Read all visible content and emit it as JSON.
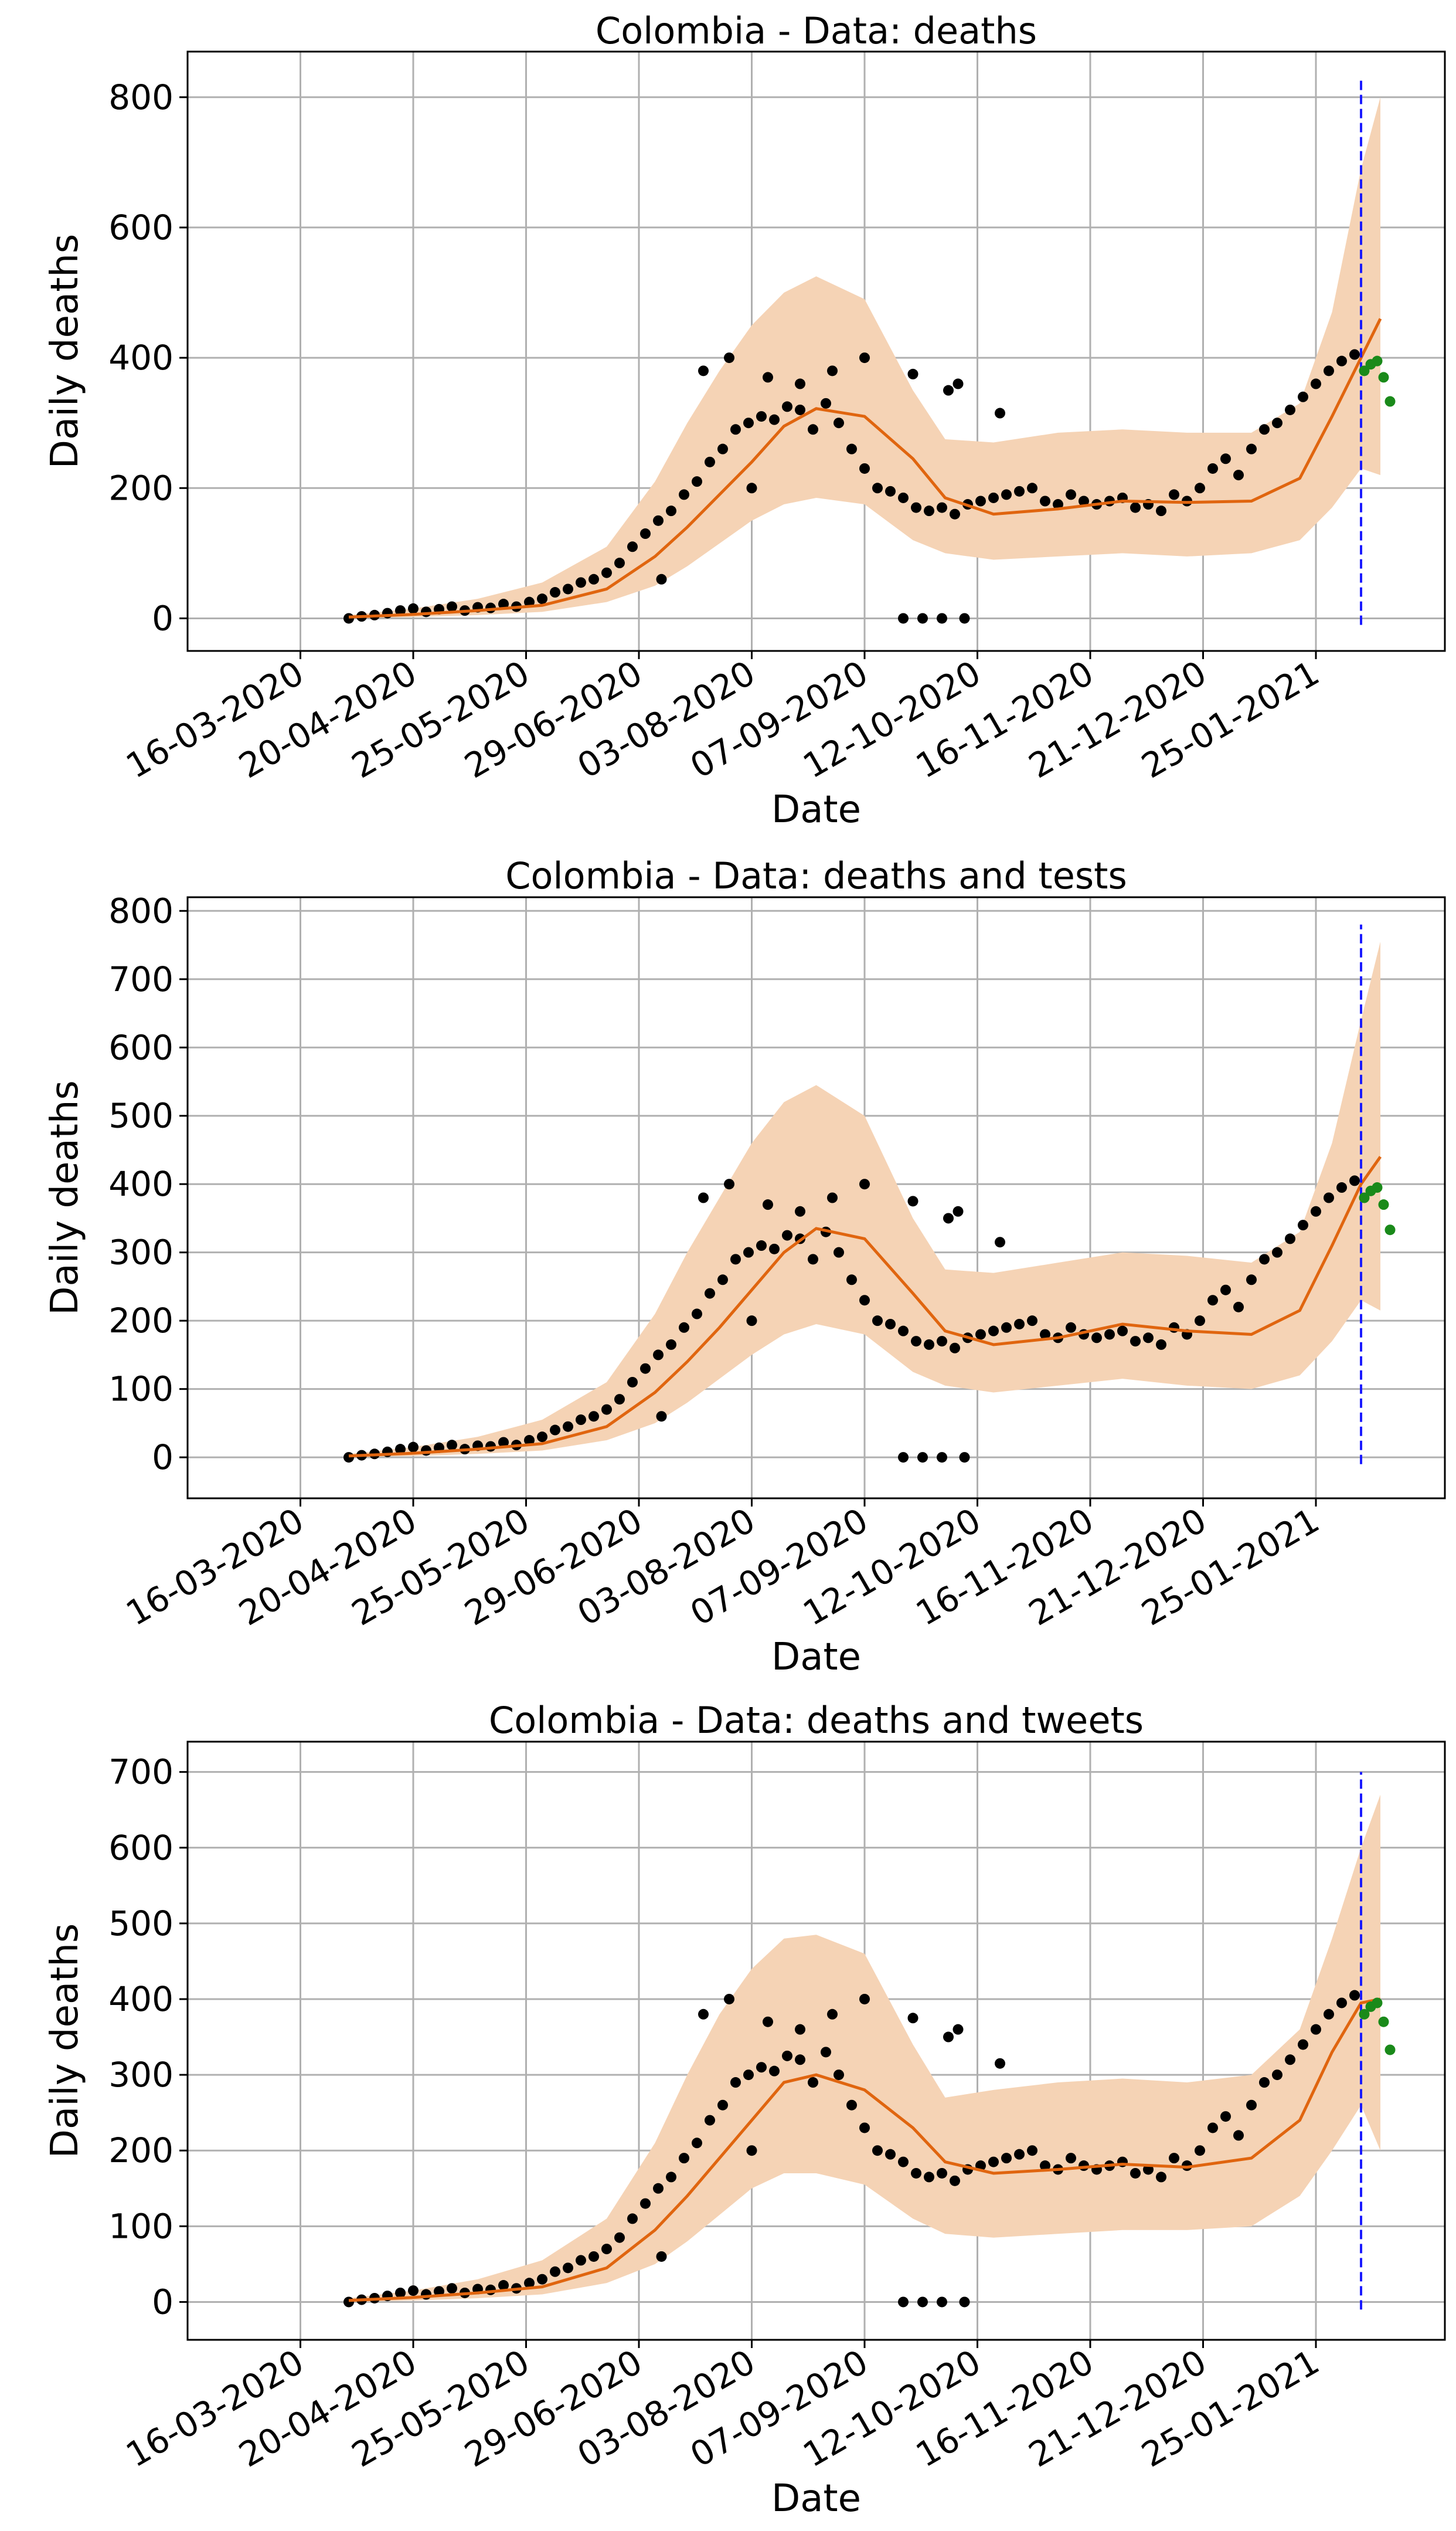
{
  "figure": {
    "x_axis_label": "Date",
    "y_axis_label": "Daily deaths",
    "date_ticks": [
      "16-03-2020",
      "20-04-2020",
      "25-05-2020",
      "29-06-2020",
      "03-08-2020",
      "07-09-2020",
      "12-10-2020",
      "16-11-2020",
      "21-12-2020",
      "25-01-2021"
    ],
    "colors": {
      "band": "#f5d3b5",
      "fit_line": "#e0650f",
      "observed": "#000000",
      "future": "#1a8a1a",
      "today_line": "#1a1aff",
      "grid": "#b0b0b0"
    }
  },
  "chart_data": [
    {
      "type": "scatter",
      "title": "Colombia - Data: deaths",
      "xlabel": "Date",
      "ylabel": "Daily deaths",
      "ylim": [
        -50,
        870
      ],
      "yticks": [
        0,
        200,
        400,
        600,
        800
      ],
      "today_vline": {
        "x_day": 314,
        "y_range": [
          -10,
          830
        ]
      },
      "fit_day": [
        0,
        20,
        40,
        60,
        80,
        95,
        105,
        115,
        125,
        135,
        145,
        160,
        175,
        185,
        200,
        220,
        240,
        260,
        280,
        295,
        305,
        314,
        320
      ],
      "fit_value": [
        2,
        6,
        12,
        20,
        45,
        95,
        140,
        190,
        240,
        295,
        322,
        310,
        245,
        185,
        160,
        168,
        180,
        178,
        180,
        215,
        310,
        400,
        460
      ],
      "band_upper": [
        5,
        15,
        30,
        55,
        110,
        210,
        300,
        380,
        450,
        500,
        525,
        490,
        350,
        275,
        270,
        285,
        290,
        285,
        285,
        330,
        470,
        690,
        800
      ],
      "band_lower": [
        0,
        2,
        5,
        10,
        25,
        50,
        80,
        115,
        150,
        175,
        185,
        175,
        120,
        100,
        90,
        95,
        100,
        95,
        100,
        120,
        170,
        230,
        220
      ],
      "observed_day": [
        0,
        4,
        8,
        12,
        16,
        20,
        24,
        28,
        32,
        36,
        40,
        44,
        48,
        52,
        56,
        60,
        64,
        68,
        72,
        76,
        80,
        84,
        88,
        92,
        96,
        100,
        104,
        108,
        112,
        116,
        120,
        124,
        128,
        132,
        136,
        140,
        144,
        148,
        152,
        156,
        160,
        164,
        168,
        172,
        176,
        180,
        184,
        188,
        192,
        196,
        200,
        204,
        208,
        212,
        216,
        220,
        224,
        228,
        232,
        236,
        240,
        244,
        248,
        252,
        256,
        260,
        264,
        268,
        272,
        276,
        280,
        284,
        288,
        292,
        296,
        300,
        304,
        308,
        312,
        97,
        172,
        175,
        178,
        184,
        191,
        186,
        189,
        202,
        130,
        140,
        150,
        160,
        110,
        118,
        125
      ],
      "observed_value": [
        0,
        3,
        5,
        8,
        12,
        15,
        10,
        14,
        18,
        12,
        17,
        16,
        22,
        18,
        25,
        30,
        40,
        45,
        55,
        60,
        70,
        85,
        110,
        130,
        150,
        165,
        190,
        210,
        240,
        260,
        290,
        300,
        310,
        305,
        325,
        320,
        290,
        330,
        300,
        260,
        230,
        200,
        195,
        185,
        170,
        165,
        170,
        160,
        175,
        180,
        185,
        190,
        195,
        200,
        180,
        175,
        190,
        180,
        175,
        180,
        185,
        170,
        175,
        165,
        190,
        180,
        200,
        230,
        245,
        220,
        260,
        290,
        300,
        320,
        340,
        360,
        380,
        395,
        405,
        60,
        0,
        375,
        0,
        0,
        0,
        350,
        360,
        315,
        370,
        360,
        380,
        400,
        380,
        400,
        200
      ],
      "future_day": [
        315,
        317,
        319,
        321,
        323
      ],
      "future_value": [
        380,
        390,
        395,
        370,
        333
      ]
    },
    {
      "type": "scatter",
      "title": "Colombia - Data: deaths and tests",
      "xlabel": "Date",
      "ylabel": "Daily deaths",
      "ylim": [
        -60,
        820
      ],
      "yticks": [
        0,
        100,
        200,
        300,
        400,
        500,
        600,
        700,
        800
      ],
      "today_vline": {
        "x_day": 314,
        "y_range": [
          -10,
          780
        ]
      },
      "fit_day": [
        0,
        20,
        40,
        60,
        80,
        95,
        105,
        115,
        125,
        135,
        145,
        160,
        175,
        185,
        200,
        220,
        240,
        260,
        280,
        295,
        305,
        314,
        320
      ],
      "fit_value": [
        2,
        6,
        12,
        20,
        45,
        95,
        140,
        190,
        245,
        300,
        335,
        320,
        240,
        185,
        165,
        175,
        195,
        185,
        180,
        215,
        310,
        400,
        440
      ],
      "band_upper": [
        5,
        15,
        30,
        55,
        110,
        210,
        300,
        380,
        460,
        520,
        545,
        500,
        350,
        275,
        270,
        285,
        300,
        295,
        285,
        330,
        460,
        640,
        755
      ],
      "band_lower": [
        0,
        2,
        5,
        10,
        25,
        50,
        80,
        115,
        150,
        180,
        195,
        180,
        125,
        105,
        95,
        105,
        115,
        105,
        100,
        120,
        170,
        230,
        215
      ],
      "observed_day": [
        0,
        4,
        8,
        12,
        16,
        20,
        24,
        28,
        32,
        36,
        40,
        44,
        48,
        52,
        56,
        60,
        64,
        68,
        72,
        76,
        80,
        84,
        88,
        92,
        96,
        100,
        104,
        108,
        112,
        116,
        120,
        124,
        128,
        132,
        136,
        140,
        144,
        148,
        152,
        156,
        160,
        164,
        168,
        172,
        176,
        180,
        184,
        188,
        192,
        196,
        200,
        204,
        208,
        212,
        216,
        220,
        224,
        228,
        232,
        236,
        240,
        244,
        248,
        252,
        256,
        260,
        264,
        268,
        272,
        276,
        280,
        284,
        288,
        292,
        296,
        300,
        304,
        308,
        312,
        97,
        172,
        175,
        178,
        184,
        191,
        186,
        189,
        202,
        130,
        140,
        150,
        160,
        110,
        118,
        125
      ],
      "observed_value": [
        0,
        3,
        5,
        8,
        12,
        15,
        10,
        14,
        18,
        12,
        17,
        16,
        22,
        18,
        25,
        30,
        40,
        45,
        55,
        60,
        70,
        85,
        110,
        130,
        150,
        165,
        190,
        210,
        240,
        260,
        290,
        300,
        310,
        305,
        325,
        320,
        290,
        330,
        300,
        260,
        230,
        200,
        195,
        185,
        170,
        165,
        170,
        160,
        175,
        180,
        185,
        190,
        195,
        200,
        180,
        175,
        190,
        180,
        175,
        180,
        185,
        170,
        175,
        165,
        190,
        180,
        200,
        230,
        245,
        220,
        260,
        290,
        300,
        320,
        340,
        360,
        380,
        395,
        405,
        60,
        0,
        375,
        0,
        0,
        0,
        350,
        360,
        315,
        370,
        360,
        380,
        400,
        380,
        400,
        200
      ],
      "future_day": [
        315,
        317,
        319,
        321,
        323
      ],
      "future_value": [
        380,
        390,
        395,
        370,
        333
      ]
    },
    {
      "type": "scatter",
      "title": "Colombia - Data: deaths and tweets",
      "xlabel": "Date",
      "ylabel": "Daily deaths",
      "ylim": [
        -50,
        740
      ],
      "yticks": [
        0,
        100,
        200,
        300,
        400,
        500,
        600,
        700
      ],
      "today_vline": {
        "x_day": 314,
        "y_range": [
          -10,
          700
        ]
      },
      "fit_day": [
        0,
        20,
        40,
        60,
        80,
        95,
        105,
        115,
        125,
        135,
        145,
        160,
        175,
        185,
        200,
        220,
        240,
        260,
        280,
        295,
        305,
        314,
        320
      ],
      "fit_value": [
        2,
        6,
        12,
        20,
        45,
        95,
        140,
        190,
        240,
        290,
        300,
        280,
        230,
        185,
        170,
        175,
        182,
        178,
        190,
        240,
        330,
        395,
        400
      ],
      "band_upper": [
        5,
        15,
        30,
        55,
        110,
        210,
        300,
        380,
        440,
        480,
        485,
        460,
        340,
        270,
        280,
        290,
        295,
        290,
        300,
        360,
        480,
        600,
        670
      ],
      "band_lower": [
        0,
        2,
        5,
        10,
        25,
        50,
        80,
        115,
        150,
        170,
        170,
        155,
        110,
        90,
        85,
        90,
        95,
        95,
        100,
        140,
        200,
        260,
        200
      ],
      "observed_day": [
        0,
        4,
        8,
        12,
        16,
        20,
        24,
        28,
        32,
        36,
        40,
        44,
        48,
        52,
        56,
        60,
        64,
        68,
        72,
        76,
        80,
        84,
        88,
        92,
        96,
        100,
        104,
        108,
        112,
        116,
        120,
        124,
        128,
        132,
        136,
        140,
        144,
        148,
        152,
        156,
        160,
        164,
        168,
        172,
        176,
        180,
        184,
        188,
        192,
        196,
        200,
        204,
        208,
        212,
        216,
        220,
        224,
        228,
        232,
        236,
        240,
        244,
        248,
        252,
        256,
        260,
        264,
        268,
        272,
        276,
        280,
        284,
        288,
        292,
        296,
        300,
        304,
        308,
        312,
        97,
        172,
        175,
        178,
        184,
        191,
        186,
        189,
        202,
        130,
        140,
        150,
        160,
        110,
        118,
        125
      ],
      "observed_value": [
        0,
        3,
        5,
        8,
        12,
        15,
        10,
        14,
        18,
        12,
        17,
        16,
        22,
        18,
        25,
        30,
        40,
        45,
        55,
        60,
        70,
        85,
        110,
        130,
        150,
        165,
        190,
        210,
        240,
        260,
        290,
        300,
        310,
        305,
        325,
        320,
        290,
        330,
        300,
        260,
        230,
        200,
        195,
        185,
        170,
        165,
        170,
        160,
        175,
        180,
        185,
        190,
        195,
        200,
        180,
        175,
        190,
        180,
        175,
        180,
        185,
        170,
        175,
        165,
        190,
        180,
        200,
        230,
        245,
        220,
        260,
        290,
        300,
        320,
        340,
        360,
        380,
        395,
        405,
        60,
        0,
        375,
        0,
        0,
        0,
        350,
        360,
        315,
        370,
        360,
        380,
        400,
        380,
        400,
        200
      ],
      "future_day": [
        315,
        317,
        319,
        321,
        323
      ],
      "future_value": [
        380,
        390,
        395,
        370,
        333
      ]
    }
  ]
}
